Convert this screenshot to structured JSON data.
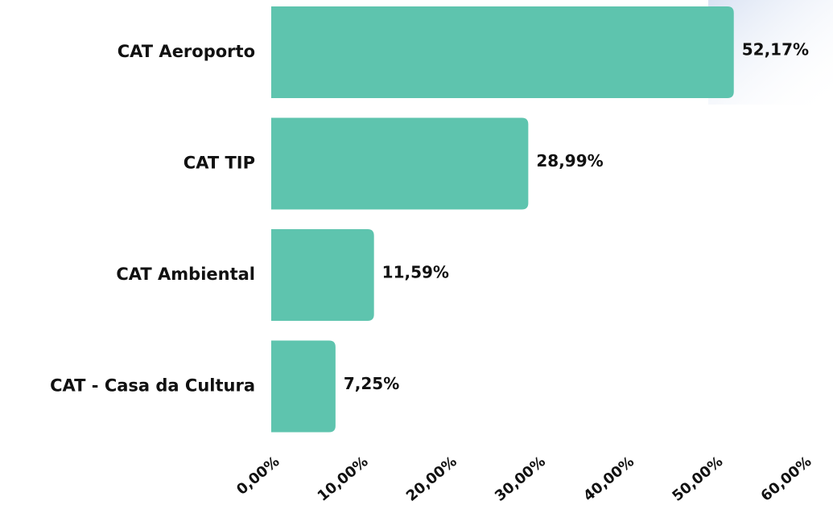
{
  "chart_data": {
    "type": "bar",
    "orientation": "horizontal",
    "categories": [
      "CAT Aeroporto",
      "CAT TIP",
      "CAT Ambiental",
      "CAT - Casa da Cultura"
    ],
    "values": [
      52.17,
      28.99,
      11.59,
      7.25
    ],
    "value_labels": [
      "52,17%",
      "28,99%",
      "11,59%",
      "7,25%"
    ],
    "color": "#5ec4ae",
    "xlim": [
      0,
      60
    ],
    "xticks": [
      {
        "value": 0,
        "label": "0,00%"
      },
      {
        "value": 10,
        "label": "10,00%"
      },
      {
        "value": 20,
        "label": "20,00%"
      },
      {
        "value": 30,
        "label": "30,00%"
      },
      {
        "value": 40,
        "label": "40,00%"
      },
      {
        "value": 50,
        "label": "50,00%"
      },
      {
        "value": 60,
        "label": "60,00%"
      }
    ]
  }
}
